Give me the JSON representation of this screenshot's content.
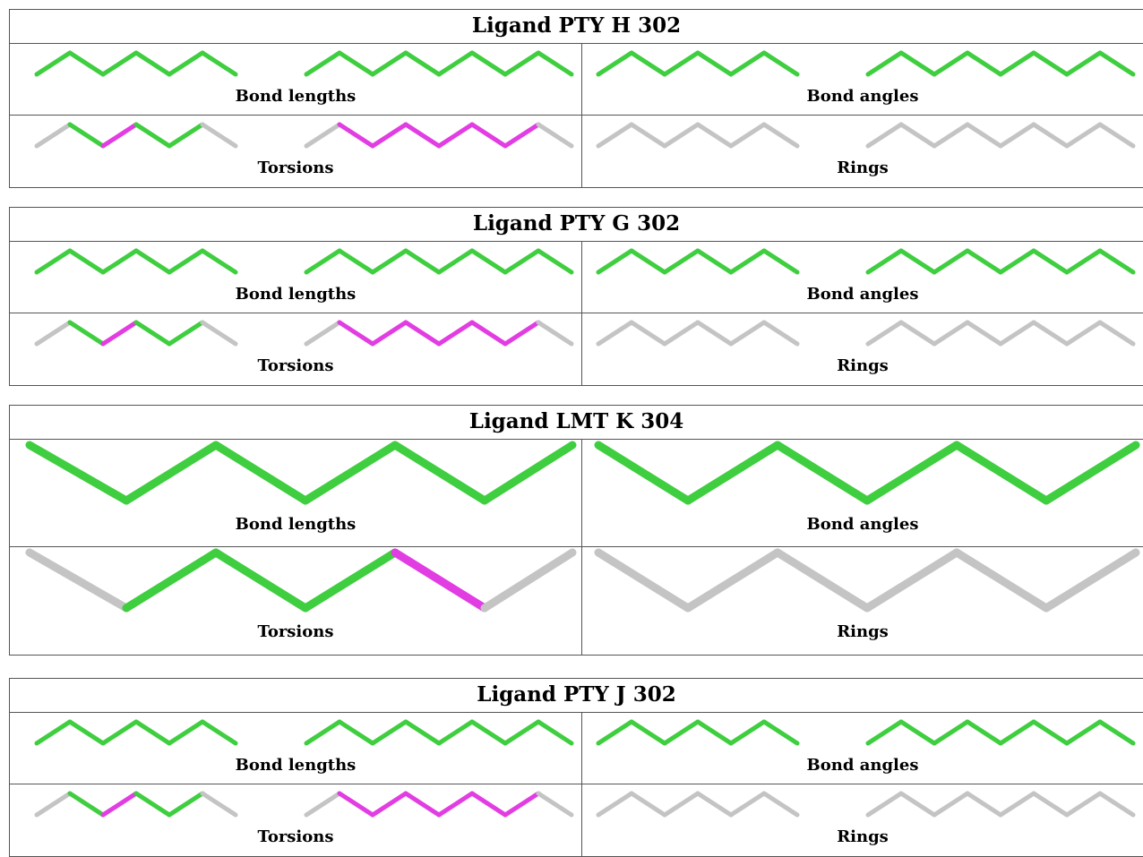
{
  "ligands": [
    {
      "title": "Ligand PTY H 302",
      "style": "pty",
      "cells": [
        {
          "label": "Bond lengths",
          "scheme": "all-green"
        },
        {
          "label": "Bond angles",
          "scheme": "all-green"
        },
        {
          "label": "Torsions",
          "scheme": "pty-torsion"
        },
        {
          "label": "Rings",
          "scheme": "all-gray"
        }
      ]
    },
    {
      "title": "Ligand PTY G 302",
      "style": "pty",
      "cells": [
        {
          "label": "Bond lengths",
          "scheme": "all-green"
        },
        {
          "label": "Bond angles",
          "scheme": "all-green"
        },
        {
          "label": "Torsions",
          "scheme": "pty-torsion"
        },
        {
          "label": "Rings",
          "scheme": "all-gray"
        }
      ]
    },
    {
      "title": "Ligand LMT K 304",
      "style": "lmt",
      "cells": [
        {
          "label": "Bond lengths",
          "scheme": "all-green"
        },
        {
          "label": "Bond angles",
          "scheme": "all-green"
        },
        {
          "label": "Torsions",
          "scheme": "lmt-torsion"
        },
        {
          "label": "Rings",
          "scheme": "all-gray"
        }
      ]
    },
    {
      "title": "Ligand PTY J 302",
      "style": "pty",
      "cells": [
        {
          "label": "Bond lengths",
          "scheme": "all-green"
        },
        {
          "label": "Bond angles",
          "scheme": "all-green"
        },
        {
          "label": "Torsions",
          "scheme": "pty-torsion"
        },
        {
          "label": "Rings",
          "scheme": "all-gray"
        }
      ]
    }
  ],
  "colors": {
    "ok": "#3fce3f",
    "outlier": "#e23de2",
    "not_applicable": "#c4c4c4",
    "border": "#555555"
  },
  "icons": {
    "molecule": "ligand-stick-diagram"
  }
}
